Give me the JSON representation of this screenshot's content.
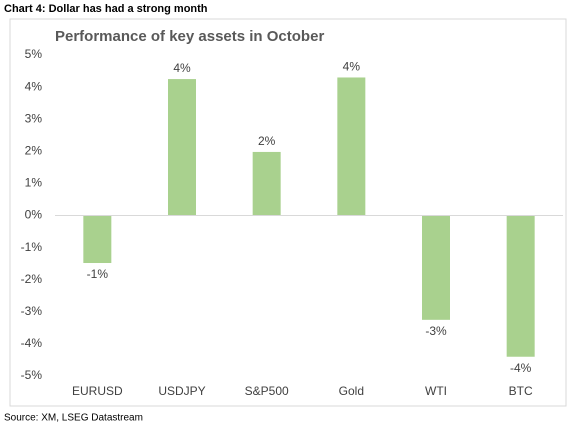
{
  "header": "Chart 4: Dollar has had a strong month",
  "source": "Source: XM, LSEG Datastream",
  "chart_data": {
    "type": "bar",
    "title": "Performance of key assets in October",
    "categories": [
      "EURUSD",
      "USDJPY",
      "S&P500",
      "Gold",
      "WTI",
      "BTC"
    ],
    "values": [
      -1.48,
      4.25,
      1.98,
      4.3,
      -3.25,
      -4.4
    ],
    "value_labels": [
      "-1%",
      "4%",
      "2%",
      "4%",
      "-3%",
      "-4%"
    ],
    "color": "#a9d18e",
    "ylim": [
      -5,
      5
    ],
    "yticks": [
      {
        "value": -5,
        "label": "-5%"
      },
      {
        "value": -4,
        "label": "-4%"
      },
      {
        "value": -3,
        "label": "-3%"
      },
      {
        "value": -2,
        "label": "-2%"
      },
      {
        "value": -1,
        "label": "-1%"
      },
      {
        "value": 0,
        "label": "0%"
      },
      {
        "value": 1,
        "label": "1%"
      },
      {
        "value": 2,
        "label": "2%"
      },
      {
        "value": 3,
        "label": "3%"
      },
      {
        "value": 4,
        "label": "4%"
      },
      {
        "value": 5,
        "label": "5%"
      }
    ],
    "grid": false
  }
}
